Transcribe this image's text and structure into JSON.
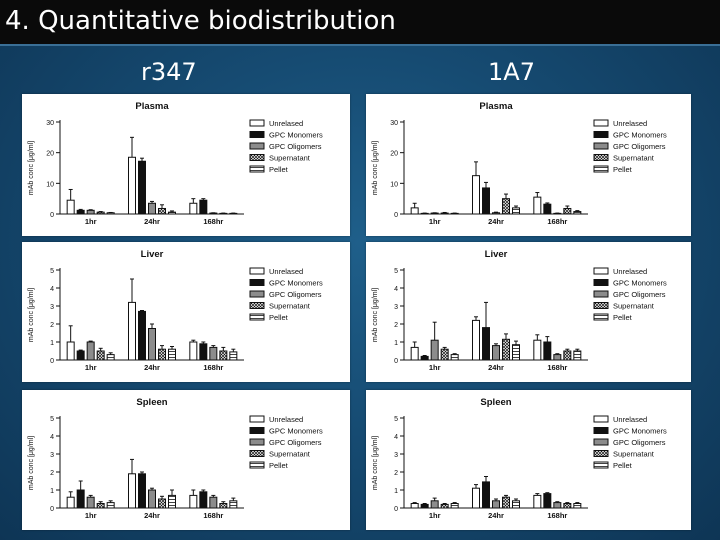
{
  "slide": {
    "title": "4. Quantitative biodistribution",
    "columns": [
      "r347",
      "1A7"
    ]
  },
  "colors": {
    "title_bar": "#0a0a0a",
    "background": "#164b72",
    "white_bar": "#ffffff",
    "black_bar": "#111111",
    "gray_bar": "#8c8c8c"
  },
  "legend": [
    "Unrelased",
    "GPC Monomers",
    "GPC Oligomers",
    "Supernatant",
    "Pellet"
  ],
  "chart_data": [
    {
      "type": "bar",
      "panel": "r347-plasma",
      "antibody": "r347",
      "title": "Plasma",
      "ylabel": "mAb conc [μg/ml]",
      "ylim": [
        0,
        30
      ],
      "yticks": [
        0,
        10,
        20,
        30
      ],
      "categories": [
        "1hr",
        "24hr",
        "168hr"
      ],
      "series": [
        {
          "name": "Unrelased",
          "values": [
            4.5,
            18.5,
            3.5
          ],
          "errors": [
            3.5,
            6.5,
            1.5
          ]
        },
        {
          "name": "GPC Monomers",
          "values": [
            1.2,
            17.2,
            4.5
          ],
          "errors": [
            0.3,
            1.0,
            0.5
          ]
        },
        {
          "name": "GPC Oligomers",
          "values": [
            1.2,
            3.5,
            0.3
          ],
          "errors": [
            0.2,
            0.6,
            0.1
          ]
        },
        {
          "name": "Supernatant",
          "values": [
            0.6,
            1.8,
            0.2
          ],
          "errors": [
            0.2,
            1.2,
            0.1
          ]
        },
        {
          "name": "Pellet",
          "values": [
            0.4,
            0.6,
            0.2
          ],
          "errors": [
            0.1,
            0.4,
            0.1
          ]
        }
      ]
    },
    {
      "type": "bar",
      "panel": "1a7-plasma",
      "antibody": "1A7",
      "title": "Plasma",
      "ylabel": "mAb conc [μg/ml]",
      "ylim": [
        0,
        30
      ],
      "yticks": [
        0,
        10,
        20,
        30
      ],
      "categories": [
        "1hr",
        "24hr",
        "168hr"
      ],
      "series": [
        {
          "name": "Unrelased",
          "values": [
            2.0,
            12.5,
            5.5
          ],
          "errors": [
            1.5,
            4.5,
            1.5
          ]
        },
        {
          "name": "GPC Monomers",
          "values": [
            0.2,
            8.5,
            3.2
          ],
          "errors": [
            0.1,
            1.8,
            0.4
          ]
        },
        {
          "name": "GPC Oligomers",
          "values": [
            0.3,
            0.4,
            0.2
          ],
          "errors": [
            0.1,
            0.2,
            0.1
          ]
        },
        {
          "name": "Supernatant",
          "values": [
            0.3,
            5.0,
            1.8
          ],
          "errors": [
            0.2,
            1.5,
            0.8
          ]
        },
        {
          "name": "Pellet",
          "values": [
            0.2,
            2.0,
            0.8
          ],
          "errors": [
            0.1,
            0.6,
            0.3
          ]
        }
      ]
    },
    {
      "type": "bar",
      "panel": "r347-liver",
      "antibody": "r347",
      "title": "Liver",
      "ylabel": "mAb conc [μg/ml]",
      "ylim": [
        0,
        5
      ],
      "yticks": [
        0,
        1,
        2,
        3,
        4,
        5
      ],
      "categories": [
        "1hr",
        "24hr",
        "168hr"
      ],
      "series": [
        {
          "name": "Unrelased",
          "values": [
            1.0,
            3.2,
            1.0
          ],
          "errors": [
            0.9,
            1.3,
            0.1
          ]
        },
        {
          "name": "GPC Monomers",
          "values": [
            0.5,
            2.7,
            0.9
          ],
          "errors": [
            0.05,
            0.05,
            0.1
          ]
        },
        {
          "name": "GPC Oligomers",
          "values": [
            1.0,
            1.75,
            0.7
          ],
          "errors": [
            0.05,
            0.25,
            0.1
          ]
        },
        {
          "name": "Supernatant",
          "values": [
            0.5,
            0.6,
            0.5
          ],
          "errors": [
            0.15,
            0.2,
            0.2
          ]
        },
        {
          "name": "Pellet",
          "values": [
            0.3,
            0.6,
            0.45
          ],
          "errors": [
            0.1,
            0.15,
            0.15
          ]
        }
      ]
    },
    {
      "type": "bar",
      "panel": "1a7-liver",
      "antibody": "1A7",
      "title": "Liver",
      "ylabel": "mAb conc [μg/ml]",
      "ylim": [
        0,
        5
      ],
      "yticks": [
        0,
        1,
        2,
        3,
        4,
        5
      ],
      "categories": [
        "1hr",
        "24hr",
        "168hr"
      ],
      "series": [
        {
          "name": "Unrelased",
          "values": [
            0.7,
            2.2,
            1.1
          ],
          "errors": [
            0.3,
            0.2,
            0.3
          ]
        },
        {
          "name": "GPC Monomers",
          "values": [
            0.2,
            1.8,
            1.0
          ],
          "errors": [
            0.05,
            1.4,
            0.3
          ]
        },
        {
          "name": "GPC Oligomers",
          "values": [
            1.1,
            0.8,
            0.3
          ],
          "errors": [
            1.0,
            0.1,
            0.05
          ]
        },
        {
          "name": "Supernatant",
          "values": [
            0.6,
            1.15,
            0.5
          ],
          "errors": [
            0.1,
            0.3,
            0.1
          ]
        },
        {
          "name": "Pellet",
          "values": [
            0.3,
            0.85,
            0.5
          ],
          "errors": [
            0.05,
            0.2,
            0.1
          ]
        }
      ]
    },
    {
      "type": "bar",
      "panel": "r347-spleen",
      "antibody": "r347",
      "title": "Spleen",
      "ylabel": "mAb conc [μg/ml]",
      "ylim": [
        0,
        5
      ],
      "yticks": [
        0,
        1,
        2,
        3,
        4,
        5
      ],
      "categories": [
        "1hr",
        "24hr",
        "168hr"
      ],
      "series": [
        {
          "name": "Unrelased",
          "values": [
            0.6,
            1.9,
            0.7
          ],
          "errors": [
            0.3,
            0.8,
            0.3
          ]
        },
        {
          "name": "GPC Monomers",
          "values": [
            1.0,
            1.9,
            0.9
          ],
          "errors": [
            0.5,
            0.1,
            0.1
          ]
        },
        {
          "name": "GPC Oligomers",
          "values": [
            0.6,
            1.0,
            0.6
          ],
          "errors": [
            0.1,
            0.1,
            0.1
          ]
        },
        {
          "name": "Supernatant",
          "values": [
            0.25,
            0.5,
            0.25
          ],
          "errors": [
            0.1,
            0.15,
            0.1
          ]
        },
        {
          "name": "Pellet",
          "values": [
            0.3,
            0.7,
            0.4
          ],
          "errors": [
            0.1,
            0.3,
            0.15
          ]
        }
      ]
    },
    {
      "type": "bar",
      "panel": "1a7-spleen",
      "antibody": "1A7",
      "title": "Spleen",
      "ylabel": "mAb conc [μg/ml]",
      "ylim": [
        0,
        5
      ],
      "yticks": [
        0,
        1,
        2,
        3,
        4,
        5
      ],
      "categories": [
        "1hr",
        "24hr",
        "168hr"
      ],
      "series": [
        {
          "name": "Unrelased",
          "values": [
            0.25,
            1.1,
            0.7
          ],
          "errors": [
            0.05,
            0.2,
            0.1
          ]
        },
        {
          "name": "GPC Monomers",
          "values": [
            0.2,
            1.45,
            0.8
          ],
          "errors": [
            0.05,
            0.3,
            0.05
          ]
        },
        {
          "name": "GPC Oligomers",
          "values": [
            0.4,
            0.4,
            0.3
          ],
          "errors": [
            0.15,
            0.1,
            0.05
          ]
        },
        {
          "name": "Supernatant",
          "values": [
            0.2,
            0.6,
            0.25
          ],
          "errors": [
            0.05,
            0.1,
            0.05
          ]
        },
        {
          "name": "Pellet",
          "values": [
            0.25,
            0.4,
            0.25
          ],
          "errors": [
            0.05,
            0.1,
            0.05
          ]
        }
      ]
    }
  ]
}
